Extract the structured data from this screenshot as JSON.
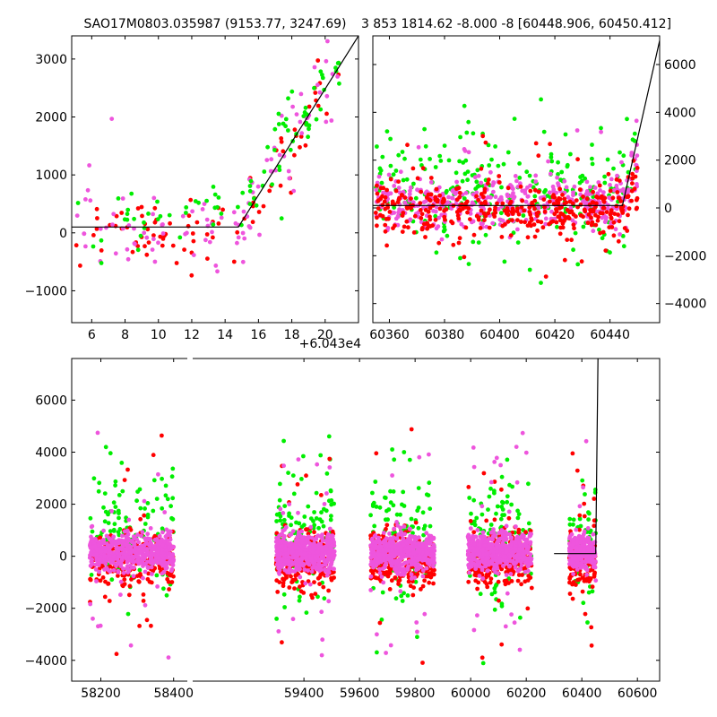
{
  "colors": {
    "red": "#ff0000",
    "green": "#00ee00",
    "pink": "#ee55dd",
    "line": "#000000"
  },
  "chart_data": [
    {
      "type": "scatter",
      "panel": "top-left",
      "title": "SAO17M0803.035987 (9153.77, 3247.69)",
      "xlim": [
        4.8,
        22.0
      ],
      "ylim": [
        -1550,
        3400
      ],
      "x_ticks": [
        6,
        8,
        10,
        12,
        14,
        16,
        18,
        20
      ],
      "x_offset_label": "+6.043e4",
      "y_ticks": [
        -1000,
        0,
        1000,
        2000,
        3000
      ],
      "y_axis_side": "left",
      "model_line": {
        "x": [
          4.8,
          14.8,
          22.0
        ],
        "y": [
          100,
          100,
          3400
        ]
      },
      "series": [
        {
          "color_key": "red",
          "cluster": "flat",
          "x_range": [
            5,
            15
          ],
          "y_center": 0,
          "y_spread": 400,
          "count": 55
        },
        {
          "color_key": "pink",
          "cluster": "flat",
          "x_range": [
            5,
            15
          ],
          "y_center": 100,
          "y_spread": 450,
          "count": 55
        },
        {
          "color_key": "green",
          "cluster": "flat",
          "x_range": [
            5,
            15
          ],
          "y_center": 200,
          "y_spread": 450,
          "count": 35
        },
        {
          "color_key": "red",
          "cluster": "rise",
          "x_range": [
            15,
            21
          ],
          "y_center": 0,
          "y_spread": 500,
          "count": 35
        },
        {
          "color_key": "pink",
          "cluster": "rise",
          "x_range": [
            15,
            21
          ],
          "y_center": 0,
          "y_spread": 500,
          "count": 45
        },
        {
          "color_key": "green",
          "cluster": "rise",
          "x_range": [
            15,
            21
          ],
          "y_center": 150,
          "y_spread": 500,
          "count": 50
        }
      ]
    },
    {
      "type": "scatter",
      "panel": "top-right",
      "title": "3 853 1814.62 -8.000 -8 [60448.906, 60450.412]",
      "xlim": [
        60354,
        60458
      ],
      "ylim": [
        -4800,
        7200
      ],
      "x_ticks": [
        60360,
        60380,
        60400,
        60420,
        60440
      ],
      "y_ticks": [
        -4000,
        -2000,
        0,
        2000,
        4000,
        6000
      ],
      "y_axis_side": "right",
      "model_line": {
        "x": [
          60354,
          60444.5,
          60458
        ],
        "y": [
          100,
          100,
          7000
        ]
      },
      "series": [
        {
          "color_key": "green",
          "x_range": [
            60355,
            60450
          ],
          "y_center": 600,
          "y_spread": 1400,
          "count": 260
        },
        {
          "color_key": "pink",
          "x_range": [
            60355,
            60450
          ],
          "y_center": 200,
          "y_spread": 650,
          "count": 420
        },
        {
          "color_key": "red",
          "x_range": [
            60355,
            60450
          ],
          "y_center": -100,
          "y_spread": 650,
          "count": 380
        }
      ]
    },
    {
      "type": "scatter",
      "panel": "bottom",
      "title": "",
      "segments": [
        {
          "xlim": [
            58120,
            58445
          ],
          "x_ticks": [
            58200,
            58400
          ]
        },
        {
          "xlim": [
            58990,
            60680
          ],
          "x_ticks": [
            59400,
            59600,
            59800,
            60000,
            60200,
            60400,
            60600
          ]
        }
      ],
      "ylim": [
        -4800,
        7600
      ],
      "y_ticks": [
        -4000,
        -2000,
        0,
        2000,
        4000,
        6000
      ],
      "y_axis_side": "left",
      "model_line": {
        "x": [
          60300,
          60450,
          60458
        ],
        "y": [
          100,
          100,
          7600
        ]
      },
      "groups": [
        {
          "x_range": [
            58170,
            58400
          ]
        },
        {
          "x_range": [
            59300,
            59510
          ]
        },
        {
          "x_range": [
            59640,
            59870
          ]
        },
        {
          "x_range": [
            59990,
            60220
          ]
        },
        {
          "x_range": [
            60355,
            60450
          ]
        }
      ],
      "series": [
        {
          "color_key": "green",
          "y_center": 700,
          "y_spread": 1500,
          "count_per_group": 120
        },
        {
          "color_key": "red",
          "y_center": -150,
          "y_spread": 700,
          "count_per_group": 260
        },
        {
          "color_key": "pink",
          "y_center": 150,
          "y_spread": 450,
          "count_per_group": 520
        }
      ]
    }
  ]
}
